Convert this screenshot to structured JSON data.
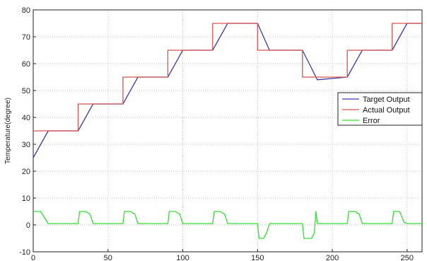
{
  "chart_data": {
    "type": "line",
    "title": "",
    "xlabel": "",
    "ylabel": "Temperature(degree)",
    "xlim": [
      0,
      260
    ],
    "ylim": [
      -10,
      80
    ],
    "xticks": [
      0,
      50,
      100,
      150,
      200,
      250
    ],
    "yticks": [
      -10,
      0,
      10,
      20,
      30,
      40,
      50,
      60,
      70,
      80
    ],
    "grid": true,
    "legend_position": "right",
    "series": [
      {
        "name": "Target Output",
        "color": "#3a3aa8",
        "x": [
          0,
          10,
          30,
          40,
          60,
          70,
          90,
          100,
          120,
          130,
          150,
          158,
          180,
          190,
          210,
          220,
          240,
          250,
          260
        ],
        "y": [
          25,
          35,
          35,
          45,
          45,
          55,
          55,
          65,
          65,
          75,
          75,
          65,
          65,
          54,
          55,
          65,
          65,
          75,
          75
        ]
      },
      {
        "name": "Actual Output",
        "color": "#d9534f",
        "x": [
          0,
          30,
          30,
          60,
          60,
          90,
          90,
          120,
          120,
          150,
          150,
          180,
          180,
          210,
          210,
          240,
          240,
          260
        ],
        "y": [
          35,
          35,
          45,
          45,
          55,
          55,
          65,
          65,
          75,
          75,
          65,
          65,
          55,
          55,
          65,
          65,
          75,
          75
        ]
      },
      {
        "name": "Error",
        "color": "#33dd33",
        "x": [
          0,
          5,
          10,
          30,
          31,
          35,
          38,
          40,
          60,
          61,
          65,
          68,
          70,
          90,
          91,
          95,
          98,
          100,
          120,
          121,
          125,
          128,
          130,
          150,
          151,
          154,
          156,
          158,
          180,
          181,
          186,
          188,
          189,
          190,
          210,
          211,
          215,
          218,
          220,
          240,
          241,
          245,
          248,
          250,
          260
        ],
        "y": [
          5,
          5,
          0.5,
          0.5,
          5,
          5,
          4,
          0.5,
          0.5,
          5,
          5,
          4,
          0.5,
          0.5,
          5,
          5,
          4,
          0.5,
          0.5,
          5,
          5,
          4,
          0.5,
          0.5,
          -5,
          -5,
          -3,
          0.5,
          0.5,
          -5,
          -5,
          -3,
          5,
          0.5,
          0.5,
          5,
          5,
          4,
          0.5,
          0.5,
          5,
          5,
          1,
          0.5,
          0.5
        ]
      }
    ]
  }
}
